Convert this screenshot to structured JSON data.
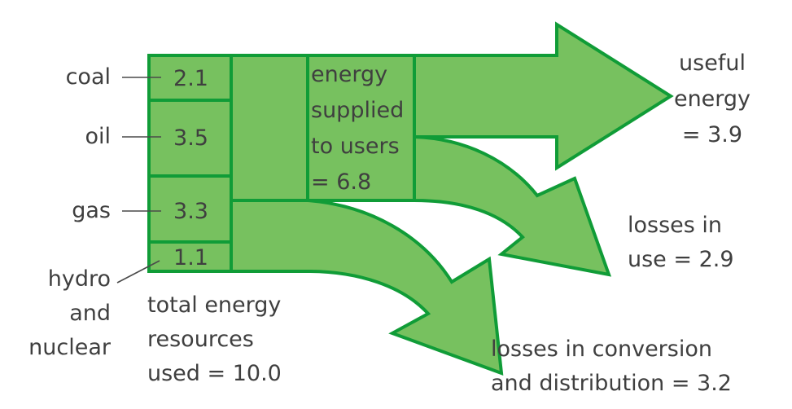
{
  "colors": {
    "fill": "#77c15f",
    "stroke": "#109c37",
    "text": "#3f3f3f",
    "leader": "#4a4a4a"
  },
  "sources": [
    {
      "name": "coal",
      "value": "2.1"
    },
    {
      "name": "oil",
      "value": "3.5"
    },
    {
      "name": "gas",
      "value": "3.3"
    },
    {
      "name": "hydro\nand\nnuclear",
      "value": "1.1"
    }
  ],
  "total": {
    "label": "total energy\nresources\nused = 10.0"
  },
  "supplied": {
    "label": "energy\nsupplied\nto users\n= 6.8"
  },
  "outputs": {
    "useful": "useful\nenergy\n= 3.9",
    "losses_use": "losses in\nuse = 2.9",
    "losses_conversion": "losses in conversion\nand distribution = 3.2"
  }
}
